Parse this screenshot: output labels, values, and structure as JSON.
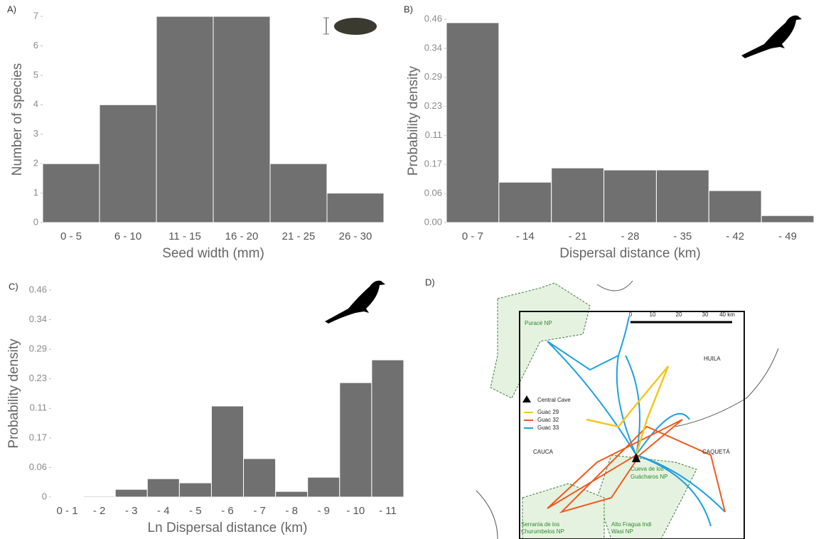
{
  "chart_data": [
    {
      "type": "bar",
      "panel": "A)",
      "xlabel": "Seed width (mm)",
      "ylabel": "Number of species",
      "categories": [
        "0 - 5",
        "6 - 10",
        "11 - 15",
        "16 - 20",
        "21 - 25",
        "26 - 30"
      ],
      "values": [
        2,
        4,
        7,
        7,
        2,
        1
      ],
      "color": "#707070",
      "ylim": [
        0,
        7
      ],
      "yticks": [
        0,
        1,
        2,
        3,
        4,
        5,
        6,
        7
      ]
    },
    {
      "type": "bar",
      "panel": "B)",
      "xlabel": "Dispersal distance (km)",
      "ylabel": "Probability density",
      "categories": [
        "0 - 7",
        "- 14",
        "- 21",
        "- 28",
        "- 35",
        "- 42",
        "- 49"
      ],
      "values": [
        6.88,
        1.39,
        1.88,
        1.81,
        1.81,
        1.1,
        0.24
      ],
      "color": "#707070",
      "ylim": [
        0,
        7
      ],
      "yticks": [
        {
          "value": 0,
          "label": "0.00"
        },
        {
          "value": 1,
          "label": "0.06"
        },
        {
          "value": 2,
          "label": "0.17"
        },
        {
          "value": 3,
          "label": "0.11"
        },
        {
          "value": 4,
          "label": "0.23"
        },
        {
          "value": 5,
          "label": "0.29"
        },
        {
          "value": 6,
          "label": "0.34"
        },
        {
          "value": 7,
          "label": "0.46"
        }
      ]
    },
    {
      "type": "bar",
      "panel": "C)",
      "xlabel": "Ln Dispersal distance (km)",
      "ylabel": "Probability density",
      "categories": [
        "0 - 1",
        "- 2",
        "- 3",
        "- 4",
        "- 5",
        "- 6",
        "- 7",
        "- 8",
        "- 9",
        "- 10",
        "- 11"
      ],
      "values": [
        0.02,
        0.03,
        0.26,
        0.62,
        0.48,
        3.08,
        1.3,
        0.19,
        0.67,
        3.87,
        4.64
      ],
      "color": "#707070",
      "ylim": [
        0,
        7
      ],
      "yticks": [
        0,
        {
          "value": 1,
          "label": "0.06"
        },
        {
          "value": 2,
          "label": "0.17"
        },
        {
          "value": 3,
          "label": "0.11"
        },
        {
          "value": 4,
          "label": "0.23"
        },
        {
          "value": 5,
          "label": "0.29"
        },
        {
          "value": 6,
          "label": "0.34"
        },
        {
          "value": 7,
          "label": "0.46"
        }
      ]
    }
  ],
  "map": {
    "panel": "D)",
    "regions": [
      "Puracé NP",
      "HUILA",
      "CAUCA",
      "CAQUETÁ"
    ],
    "legend": [
      "Central Cave",
      "Guac 29",
      "Guac 32",
      "Guac 33"
    ],
    "parks": [
      "Cueva de los",
      "Guácharos NP",
      "Serranía de los",
      "Churumbelos NP",
      "Alto Fragua Indi",
      "Wasi NP"
    ],
    "scale": [
      "0",
      "10",
      "20",
      "30",
      "40 km"
    ]
  }
}
